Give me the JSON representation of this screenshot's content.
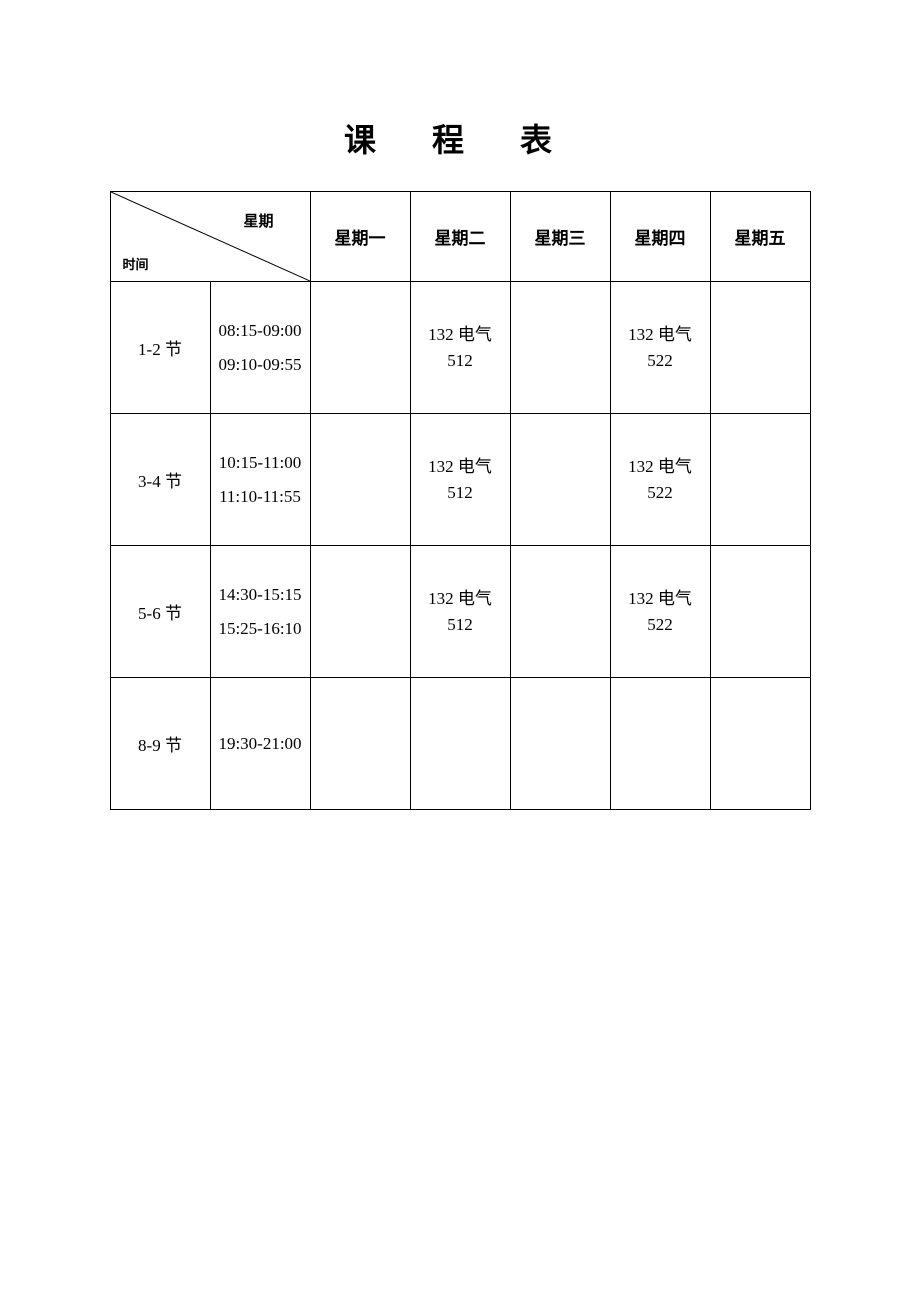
{
  "title": "课 程 表",
  "headerDiagonal": {
    "topLabel": "星期",
    "bottomLabel": "时间"
  },
  "days": [
    "星期一",
    "星期二",
    "星期三",
    "星期四",
    "星期五"
  ],
  "rows": [
    {
      "period": "1-2 节",
      "time1": "08:15-09:00",
      "time2": "09:10-09:55",
      "cells": [
        "",
        "132 电气\n512",
        "",
        "132 电气\n522",
        ""
      ]
    },
    {
      "period": "3-4 节",
      "time1": "10:15-11:00",
      "time2": "11:10-11:55",
      "cells": [
        "",
        "132 电气\n512",
        "",
        "132 电气\n522",
        ""
      ]
    },
    {
      "period": "5-6 节",
      "time1": "14:30-15:15",
      "time2": "15:25-16:10",
      "cells": [
        "",
        "132 电气\n512",
        "",
        "132 电气\n522",
        ""
      ]
    },
    {
      "period": "8-9 节",
      "time1": "19:30-21:00",
      "time2": "",
      "cells": [
        "",
        "",
        "",
        "",
        ""
      ]
    }
  ],
  "colors": {
    "background": "#ffffff",
    "text": "#000000",
    "border": "#000000"
  },
  "layout": {
    "tableWidth": 700,
    "headerCellWidth": 200,
    "dayColWidth": 100,
    "periodColWidth": 72,
    "timeColWidth": 128,
    "headerRowHeight": 90,
    "bodyRowHeight": 132,
    "titleFontSize": 32,
    "bodyFontSize": 17
  }
}
